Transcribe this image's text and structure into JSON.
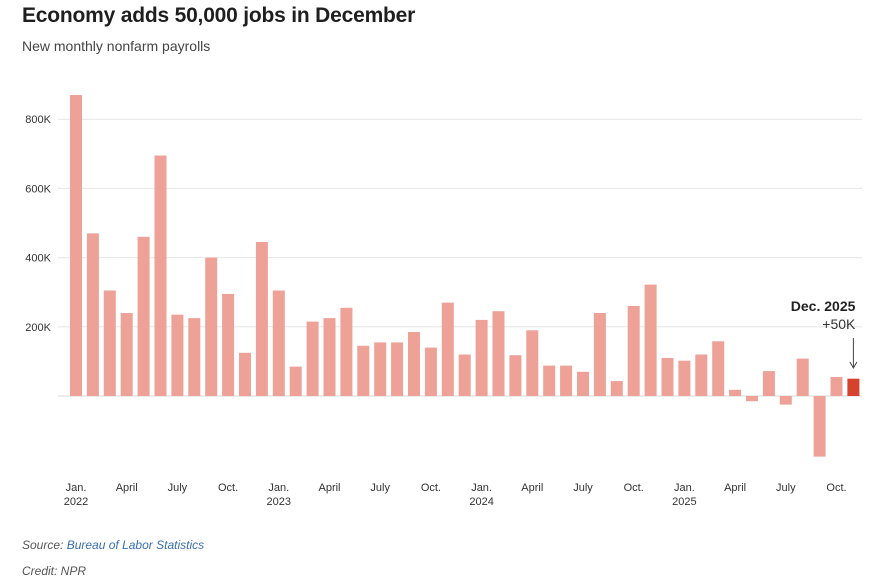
{
  "chart_data": {
    "type": "bar",
    "title": "Economy adds 50,000 jobs in December",
    "subtitle": "New monthly nonfarm payrolls",
    "ylim": [
      -200000,
      900000
    ],
    "yticks": [
      {
        "value": 200000,
        "label": "200K"
      },
      {
        "value": 400000,
        "label": "400K"
      },
      {
        "value": 600000,
        "label": "600K"
      },
      {
        "value": 800000,
        "label": "800K"
      }
    ],
    "grid": true,
    "xtick_labels": [
      {
        "index": 0,
        "lines": [
          "Jan.",
          "2022"
        ]
      },
      {
        "index": 3,
        "lines": [
          "April"
        ]
      },
      {
        "index": 6,
        "lines": [
          "July"
        ]
      },
      {
        "index": 9,
        "lines": [
          "Oct."
        ]
      },
      {
        "index": 12,
        "lines": [
          "Jan.",
          "2023"
        ]
      },
      {
        "index": 15,
        "lines": [
          "April"
        ]
      },
      {
        "index": 18,
        "lines": [
          "July"
        ]
      },
      {
        "index": 21,
        "lines": [
          "Oct."
        ]
      },
      {
        "index": 24,
        "lines": [
          "Jan.",
          "2024"
        ]
      },
      {
        "index": 27,
        "lines": [
          "April"
        ]
      },
      {
        "index": 30,
        "lines": [
          "July"
        ]
      },
      {
        "index": 33,
        "lines": [
          "Oct."
        ]
      },
      {
        "index": 36,
        "lines": [
          "Jan.",
          "2025"
        ]
      },
      {
        "index": 39,
        "lines": [
          "April"
        ]
      },
      {
        "index": 42,
        "lines": [
          "July"
        ]
      },
      {
        "index": 45,
        "lines": [
          "Oct."
        ]
      }
    ],
    "values": [
      870000,
      470000,
      305000,
      240000,
      460000,
      695000,
      235000,
      225000,
      400000,
      295000,
      125000,
      445000,
      305000,
      85000,
      215000,
      225000,
      255000,
      145000,
      155000,
      155000,
      185000,
      140000,
      270000,
      120000,
      220000,
      245000,
      118000,
      190000,
      88000,
      88000,
      70000,
      240000,
      43000,
      260000,
      322000,
      110000,
      102000,
      120000,
      158000,
      18000,
      -15000,
      72000,
      -25000,
      108000,
      -175000,
      55000,
      50000
    ],
    "highlight_index": 46,
    "colors": {
      "bar": "#eda197",
      "highlight": "#d5422d",
      "grid": "#e6e6e6",
      "zero": "#d9d9d9"
    },
    "annotation": {
      "title": "Dec. 2025",
      "value": "+50K"
    }
  },
  "footer": {
    "source_prefix": "Source: ",
    "source_link": "Bureau of Labor Statistics",
    "credit": "Credit: NPR"
  }
}
